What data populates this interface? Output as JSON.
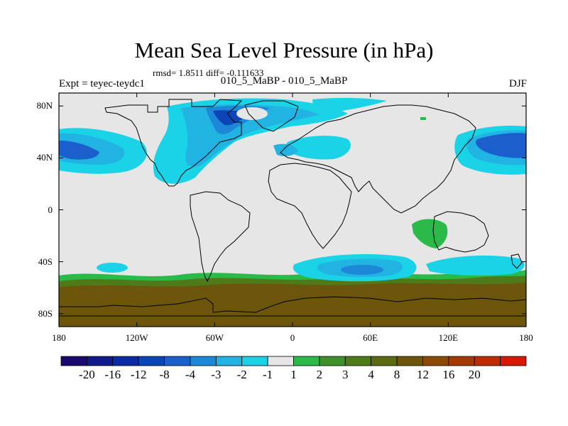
{
  "header": {
    "title": "Mean Sea Level Pressure (in hPa)",
    "stats": "rmsd= 1.8511 diff= -0.111633",
    "experiment": "Expt = teyec-teydc1",
    "period_label": "010_5_MaBP - 010_5_MaBP",
    "season": "DJF"
  },
  "map": {
    "lon_range": [
      -180,
      180
    ],
    "lat_range": [
      -90,
      90
    ],
    "lat_ticks": [
      {
        "value": 80,
        "label": "80N"
      },
      {
        "value": 40,
        "label": "40N"
      },
      {
        "value": 0,
        "label": "0"
      },
      {
        "value": -40,
        "label": "40S"
      },
      {
        "value": -80,
        "label": "80S"
      }
    ],
    "lon_ticks": [
      {
        "value": -180,
        "label": "180"
      },
      {
        "value": -120,
        "label": "120W"
      },
      {
        "value": -60,
        "label": "60W"
      },
      {
        "value": 0,
        "label": "0"
      },
      {
        "value": 60,
        "label": "60E"
      },
      {
        "value": 120,
        "label": "120E"
      },
      {
        "value": 180,
        "label": "180"
      }
    ],
    "background_color": "#e6e6e6"
  },
  "colorbar": {
    "colors": [
      "#1a0a6e",
      "#101a8a",
      "#0a2aa8",
      "#0b46b8",
      "#1a5fcc",
      "#1e88d8",
      "#21b3e2",
      "#1ad3e6",
      "#e6e6e6",
      "#2aba4a",
      "#3f8f2a",
      "#4f7a1a",
      "#5e6a12",
      "#6b560c",
      "#8a4a08",
      "#a33a06",
      "#c02a04",
      "#d81802"
    ],
    "labels": [
      "-20",
      "-16",
      "-12",
      "-8",
      "-4",
      "-3",
      "-2",
      "-1",
      "1",
      "2",
      "3",
      "4",
      "8",
      "12",
      "16",
      "20"
    ]
  }
}
